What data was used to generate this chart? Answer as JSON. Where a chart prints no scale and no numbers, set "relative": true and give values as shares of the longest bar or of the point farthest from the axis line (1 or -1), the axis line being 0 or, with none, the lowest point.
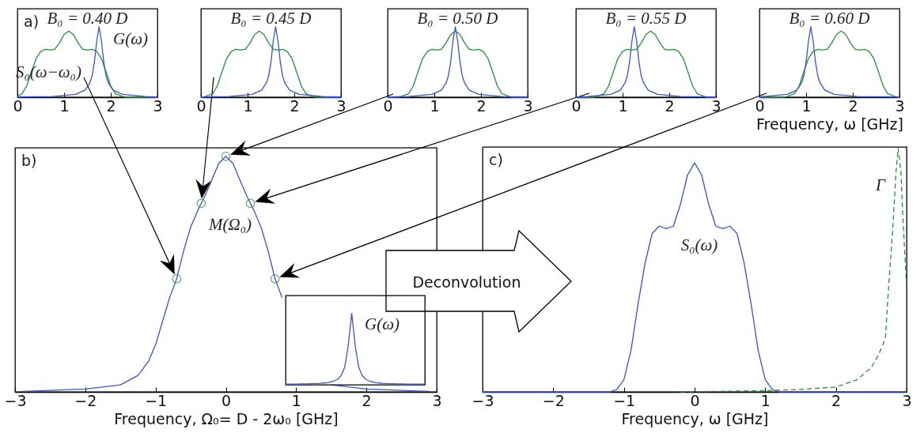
{
  "chart_data": [
    {
      "type": "line",
      "title": "B₀ = 0.40 D",
      "relative": true,
      "tick_labels": "x",
      "xlim": [
        0,
        3
      ],
      "xticks": [
        0,
        1,
        2,
        3
      ],
      "annotations": [
        "a)",
        "G(ω)",
        "S₀(ω−ω₀)"
      ],
      "series": [
        {
          "color": "#2a8c3c",
          "x": [
            0,
            0.1,
            0.2,
            0.3,
            0.4,
            0.5,
            0.6,
            0.7,
            0.8,
            0.9,
            1.0,
            1.1,
            1.2,
            1.3,
            1.4,
            1.5,
            1.6,
            1.7,
            1.8,
            1.9,
            2.0,
            2.1,
            2.3,
            3
          ],
          "values": [
            0.01,
            0.05,
            0.16,
            0.36,
            0.55,
            0.65,
            0.68,
            0.67,
            0.68,
            0.77,
            0.89,
            0.94,
            0.89,
            0.77,
            0.68,
            0.67,
            0.68,
            0.65,
            0.55,
            0.36,
            0.16,
            0.05,
            0,
            0
          ]
        },
        {
          "color": "#3b55c2",
          "x": [
            0,
            0.75,
            1.25,
            1.45,
            1.55,
            1.6,
            1.65,
            1.7,
            1.75,
            1.8,
            1.85,
            1.9,
            1.95,
            2.05,
            2.25,
            2.75,
            3
          ],
          "values": [
            0.003,
            0.01,
            0.04,
            0.1,
            0.2,
            0.3,
            0.5,
            0.8,
            1,
            0.8,
            0.5,
            0.3,
            0.2,
            0.1,
            0.04,
            0.01,
            0.003
          ]
        }
      ]
    },
    {
      "type": "line",
      "title": "B₀ = 0.45 D",
      "relative": true,
      "tick_labels": "x",
      "xlim": [
        0,
        3
      ],
      "xticks": [
        0,
        1,
        2,
        3
      ],
      "series": [
        {
          "color": "#2a8c3c",
          "x": [
            0,
            0.05,
            0.25,
            0.35,
            0.45,
            0.55,
            0.65,
            0.75,
            0.85,
            0.95,
            1.05,
            1.15,
            1.25,
            1.35,
            1.45,
            1.55,
            1.65,
            1.75,
            1.85,
            1.95,
            2.05,
            2.15,
            2.25,
            2.45,
            3
          ],
          "values": [
            0,
            0,
            0.05,
            0.16,
            0.36,
            0.55,
            0.65,
            0.68,
            0.67,
            0.68,
            0.77,
            0.89,
            0.94,
            0.89,
            0.77,
            0.68,
            0.67,
            0.68,
            0.65,
            0.55,
            0.36,
            0.16,
            0.05,
            0,
            0
          ]
        },
        {
          "color": "#3b55c2",
          "x": [
            0,
            0.6,
            1.1,
            1.3,
            1.4,
            1.45,
            1.5,
            1.55,
            1.6,
            1.65,
            1.7,
            1.75,
            1.8,
            1.9,
            2.1,
            2.6,
            3
          ],
          "values": [
            0.003,
            0.01,
            0.04,
            0.1,
            0.2,
            0.3,
            0.5,
            0.8,
            1,
            0.8,
            0.5,
            0.3,
            0.2,
            0.1,
            0.04,
            0.01,
            0.003
          ]
        }
      ]
    },
    {
      "type": "line",
      "title": "B₀ = 0.50 D",
      "relative": true,
      "tick_labels": "x",
      "xlim": [
        0,
        3
      ],
      "xticks": [
        0,
        1,
        2,
        3
      ],
      "series": [
        {
          "color": "#2a8c3c",
          "x": [
            0,
            0.25,
            0.45,
            0.55,
            0.65,
            0.75,
            0.85,
            0.95,
            1.05,
            1.15,
            1.25,
            1.35,
            1.45,
            1.55,
            1.65,
            1.75,
            1.85,
            1.95,
            2.05,
            2.15,
            2.25,
            2.35,
            2.45,
            2.65,
            3
          ],
          "values": [
            0,
            0,
            0.05,
            0.16,
            0.36,
            0.55,
            0.65,
            0.68,
            0.67,
            0.68,
            0.77,
            0.89,
            0.94,
            0.89,
            0.77,
            0.68,
            0.67,
            0.68,
            0.65,
            0.55,
            0.36,
            0.16,
            0.05,
            0,
            0
          ]
        },
        {
          "color": "#3b55c2",
          "x": [
            0,
            0.45,
            0.95,
            1.15,
            1.25,
            1.3,
            1.35,
            1.4,
            1.45,
            1.5,
            1.55,
            1.6,
            1.65,
            1.75,
            1.95,
            2.45,
            3
          ],
          "values": [
            0.003,
            0.01,
            0.04,
            0.1,
            0.2,
            0.3,
            0.5,
            0.8,
            1,
            0.8,
            0.5,
            0.3,
            0.2,
            0.1,
            0.04,
            0.01,
            0.003
          ]
        }
      ]
    },
    {
      "type": "line",
      "title": "B₀ = 0.55 D",
      "relative": true,
      "tick_labels": "x",
      "xlim": [
        0,
        3
      ],
      "xticks": [
        0,
        1,
        2,
        3
      ],
      "series": [
        {
          "color": "#2a8c3c",
          "x": [
            0,
            0.4,
            0.6,
            0.7,
            0.8,
            0.9,
            1.0,
            1.1,
            1.2,
            1.3,
            1.4,
            1.5,
            1.6,
            1.7,
            1.8,
            1.9,
            2.0,
            2.1,
            2.2,
            2.3,
            2.4,
            2.5,
            2.6,
            2.8,
            3
          ],
          "values": [
            0,
            0,
            0.05,
            0.16,
            0.36,
            0.55,
            0.65,
            0.68,
            0.67,
            0.68,
            0.77,
            0.89,
            0.94,
            0.89,
            0.77,
            0.68,
            0.67,
            0.68,
            0.65,
            0.55,
            0.36,
            0.16,
            0.05,
            0,
            0
          ]
        },
        {
          "color": "#3b55c2",
          "x": [
            0,
            0.25,
            0.75,
            0.95,
            1.05,
            1.1,
            1.15,
            1.2,
            1.25,
            1.3,
            1.35,
            1.4,
            1.45,
            1.55,
            1.75,
            2.25,
            3
          ],
          "values": [
            0.003,
            0.01,
            0.04,
            0.1,
            0.2,
            0.3,
            0.5,
            0.8,
            1,
            0.8,
            0.5,
            0.3,
            0.2,
            0.1,
            0.04,
            0.01,
            0.003
          ]
        }
      ]
    },
    {
      "type": "line",
      "title": "B₀ = 0.60 D",
      "relative": true,
      "tick_labels": "x",
      "xlim": [
        0,
        3
      ],
      "xticks": [
        0,
        1,
        2,
        3
      ],
      "xlabel": "Frequency, ω [GHz]",
      "series": [
        {
          "color": "#2a8c3c",
          "x": [
            0,
            0.55,
            0.75,
            0.85,
            0.95,
            1.05,
            1.15,
            1.25,
            1.35,
            1.45,
            1.55,
            1.65,
            1.75,
            1.85,
            1.95,
            2.05,
            2.15,
            2.25,
            2.35,
            2.45,
            2.55,
            2.65,
            2.75,
            2.95,
            3
          ],
          "values": [
            0,
            0,
            0.05,
            0.16,
            0.36,
            0.55,
            0.65,
            0.68,
            0.67,
            0.68,
            0.77,
            0.89,
            0.94,
            0.89,
            0.77,
            0.68,
            0.67,
            0.68,
            0.65,
            0.55,
            0.36,
            0.16,
            0.05,
            0,
            0
          ]
        },
        {
          "color": "#3b55c2",
          "x": [
            0,
            0.1,
            0.6,
            0.8,
            0.9,
            0.95,
            1.0,
            1.05,
            1.1,
            1.15,
            1.2,
            1.25,
            1.3,
            1.4,
            1.6,
            2.1,
            3
          ],
          "values": [
            0.003,
            0.01,
            0.04,
            0.1,
            0.2,
            0.3,
            0.5,
            0.8,
            1,
            0.8,
            0.5,
            0.3,
            0.2,
            0.1,
            0.04,
            0.01,
            0.003
          ]
        }
      ]
    },
    {
      "type": "line",
      "relative": true,
      "tick_labels": "x",
      "xlim": [
        -3,
        3
      ],
      "xticks": [
        {
          "value": -3,
          "label": "−3"
        },
        {
          "value": -2,
          "label": "−2"
        },
        {
          "value": -1,
          "label": "−1"
        },
        0,
        1,
        2,
        3
      ],
      "xlabel": "Frequency, Ω₀= D - 2ω₀ [GHz]",
      "annotations": [
        "b)",
        "Deconvolution",
        "M(Ω₀)"
      ],
      "series": [
        {
          "color": "#3b55c2",
          "x": [
            -2.9,
            -2,
            -1.5,
            -1.25,
            -1.1,
            -1,
            -0.9,
            -0.8,
            -0.7,
            -0.6,
            -0.5,
            -0.4,
            -0.3,
            -0.2,
            -0.1,
            0,
            0.1,
            0.2,
            0.3,
            0.4,
            0.5,
            0.6,
            0.7,
            0.8,
            0.9,
            1,
            1.1,
            1.25,
            1.5,
            2,
            2.9
          ],
          "values": [
            0.002,
            0.012,
            0.03,
            0.07,
            0.13,
            0.2,
            0.3,
            0.4,
            0.48,
            0.6,
            0.7,
            0.77,
            0.83,
            0.9,
            0.97,
            1,
            0.97,
            0.9,
            0.83,
            0.77,
            0.7,
            0.6,
            0.48,
            0.4,
            null,
            null,
            null,
            null,
            0.03,
            0.012,
            0.002
          ]
        },
        {
          "type": "scatter",
          "marker": "circle",
          "color": "#2a8c3c",
          "x": [
            -0.7,
            -0.35,
            0,
            0.35,
            0.7
          ],
          "values": [
            0.48,
            0.8,
            1,
            0.8,
            0.48
          ]
        }
      ]
    },
    {
      "type": "line",
      "relative": true,
      "tick_labels": false,
      "categories": [
        null,
        null,
        null,
        null,
        null,
        null,
        null,
        null,
        null,
        null,
        null,
        null,
        null,
        null,
        null,
        null,
        null,
        null,
        null,
        null,
        null,
        null,
        null,
        null,
        null,
        null,
        null,
        null,
        null,
        null,
        null,
        null,
        null,
        null,
        null,
        null,
        null,
        null,
        null,
        null,
        null
      ],
      "annotations": [
        "G(ω)"
      ],
      "series": [
        {
          "color": "#3b55c2",
          "values": [
            0.01,
            0.01,
            0.01,
            0.01,
            0.012,
            0.012,
            0.013,
            0.014,
            0.015,
            0.018,
            0.02,
            0.025,
            0.03,
            0.04,
            0.055,
            0.08,
            0.13,
            0.25,
            0.55,
            1,
            0.55,
            0.25,
            0.13,
            0.08,
            0.055,
            0.04,
            0.03,
            0.025,
            0.02,
            0.018,
            0.015,
            0.014,
            0.013,
            0.012,
            0.012,
            0.01,
            0.01,
            0.01,
            0.01,
            0.01,
            0.01
          ]
        }
      ]
    },
    {
      "type": "line",
      "relative": true,
      "tick_labels": "x",
      "xlim": [
        -3,
        3
      ],
      "xticks": [
        {
          "value": -3,
          "label": "−3"
        },
        {
          "value": -2,
          "label": "−2"
        },
        {
          "value": -1,
          "label": "−1"
        },
        0,
        1,
        2,
        3
      ],
      "xlabel": "Frequency, ω [GHz]",
      "annotations": [
        "c)",
        "S₀(ω)",
        "Γ"
      ],
      "series": [
        {
          "color": "#3b55c2",
          "x": [
            -3,
            -1.2,
            -1.1,
            -1,
            -0.9,
            -0.8,
            -0.7,
            -0.6,
            -0.5,
            -0.4,
            -0.3,
            -0.2,
            -0.1,
            0,
            0.1,
            0.2,
            0.3,
            0.4,
            0.5,
            0.6,
            0.7,
            0.8,
            0.9,
            1,
            1.1,
            1.2,
            3
          ],
          "values": [
            0,
            0,
            0.01,
            0.05,
            0.17,
            0.36,
            0.53,
            0.65,
            0.68,
            0.67,
            0.68,
            0.77,
            0.89,
            0.94,
            0.89,
            0.77,
            0.68,
            0.67,
            0.68,
            0.65,
            0.53,
            0.36,
            0.17,
            0.05,
            0.01,
            0,
            0
          ]
        },
        {
          "color": "#2a8c3c",
          "line_style": "dashed",
          "x": [
            -0.2,
            1,
            1.5,
            2,
            2.3,
            2.5,
            2.6,
            2.7,
            2.75,
            2.8,
            2.85,
            2.88,
            2.92,
            2.95,
            3
          ],
          "values": [
            0,
            0.005,
            0.01,
            0.02,
            0.05,
            0.1,
            0.15,
            0.22,
            0.45,
            0.65,
            0.9,
            1,
            0.9,
            0.7,
            0.43
          ]
        }
      ]
    }
  ]
}
